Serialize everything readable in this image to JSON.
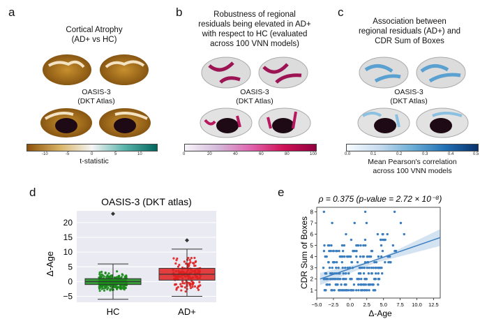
{
  "panel_a": {
    "label": "a",
    "title_line1": "Cortical Atrophy",
    "title_line2": "(AD+ vs HC)",
    "dataset_line1": "OASIS-3",
    "dataset_line2": "(DKT Atlas)",
    "colorbar_ticks": [
      "-10",
      "-5",
      "0",
      "5",
      "10"
    ],
    "colorbar_label": "t-statistic",
    "colors": {
      "low": "#8c510a",
      "mid": "#f5f5f5",
      "high": "#01665e"
    }
  },
  "panel_b": {
    "label": "b",
    "title_line1": "Robustness of regional",
    "title_line2": "residuals being elevated in AD+",
    "title_line3": "with respect to HC (evaluated",
    "title_line4": "across 100 VNN models)",
    "dataset_line1": "OASIS-3",
    "dataset_line2": "(DKT Atlas)",
    "colorbar_ticks": [
      "0",
      "20",
      "40",
      "60",
      "80",
      "100"
    ],
    "colors": {
      "low": "#f7f4f9",
      "high": "#91003f"
    }
  },
  "panel_c": {
    "label": "c",
    "title_line1": "Association between",
    "title_line2": "regional residuals (AD+) and",
    "title_line3": "CDR Sum of Boxes",
    "dataset_line1": "OASIS-3",
    "dataset_line2": "(DKT Atlas)",
    "colorbar_ticks": [
      "0.0",
      "0.1",
      "0.2",
      "0.3",
      "0.4",
      "0.5"
    ],
    "colorbar_label_line1": "Mean Pearson's correlation",
    "colorbar_label_line2": "across 100 VNN models",
    "colors": {
      "low": "#f7fbff",
      "high": "#08306b"
    }
  },
  "chart_data": [
    {
      "panel": "d",
      "type": "box",
      "title": "OASIS-3 (DKT atlas)",
      "ylabel": "Δ-Age",
      "categories": [
        "HC",
        "AD+"
      ],
      "ylim": [
        -7,
        24
      ],
      "yticks": [
        "−5",
        "0",
        "5",
        "10",
        "15",
        "20"
      ],
      "ytick_values": [
        -5,
        0,
        5,
        10,
        15,
        20
      ],
      "series": [
        {
          "name": "HC",
          "color": "#1a8a1a",
          "q1": -1.0,
          "median": 0.0,
          "q3": 1.0,
          "whisker_low": -6,
          "whisker_high": 6,
          "outliers": [
            23
          ]
        },
        {
          "name": "AD+",
          "color": "#e02020",
          "q1": 0.5,
          "median": 2.5,
          "q3": 4.5,
          "whisker_low": -5,
          "whisker_high": 11,
          "outliers": [
            14
          ]
        }
      ]
    },
    {
      "panel": "e",
      "type": "scatter",
      "title": "ρ = 0.375 (p-value = 2.72 × 10⁻⁸)",
      "xlabel": "Δ-Age",
      "ylabel": "CDR Sum of Boxes",
      "xlim": [
        -5,
        13.5
      ],
      "ylim": [
        0.3,
        8.4
      ],
      "xticks": [
        "−5.0",
        "−2.5",
        "0.0",
        "2.5",
        "5.0",
        "7.5",
        "10.0",
        "12.5"
      ],
      "xtick_values": [
        -5,
        -2.5,
        0,
        2.5,
        5,
        7.5,
        10,
        12.5
      ],
      "yticks": [
        "1",
        "2",
        "3",
        "4",
        "5",
        "6",
        "7",
        "8"
      ],
      "ytick_values": [
        1,
        2,
        3,
        4,
        5,
        6,
        7,
        8
      ],
      "color": "#3b7ec0",
      "regression": {
        "x": [
          -4.5,
          13.5
        ],
        "y": [
          2.0,
          5.7
        ]
      }
    }
  ],
  "panel_d_label": "d",
  "panel_e_label": "e"
}
